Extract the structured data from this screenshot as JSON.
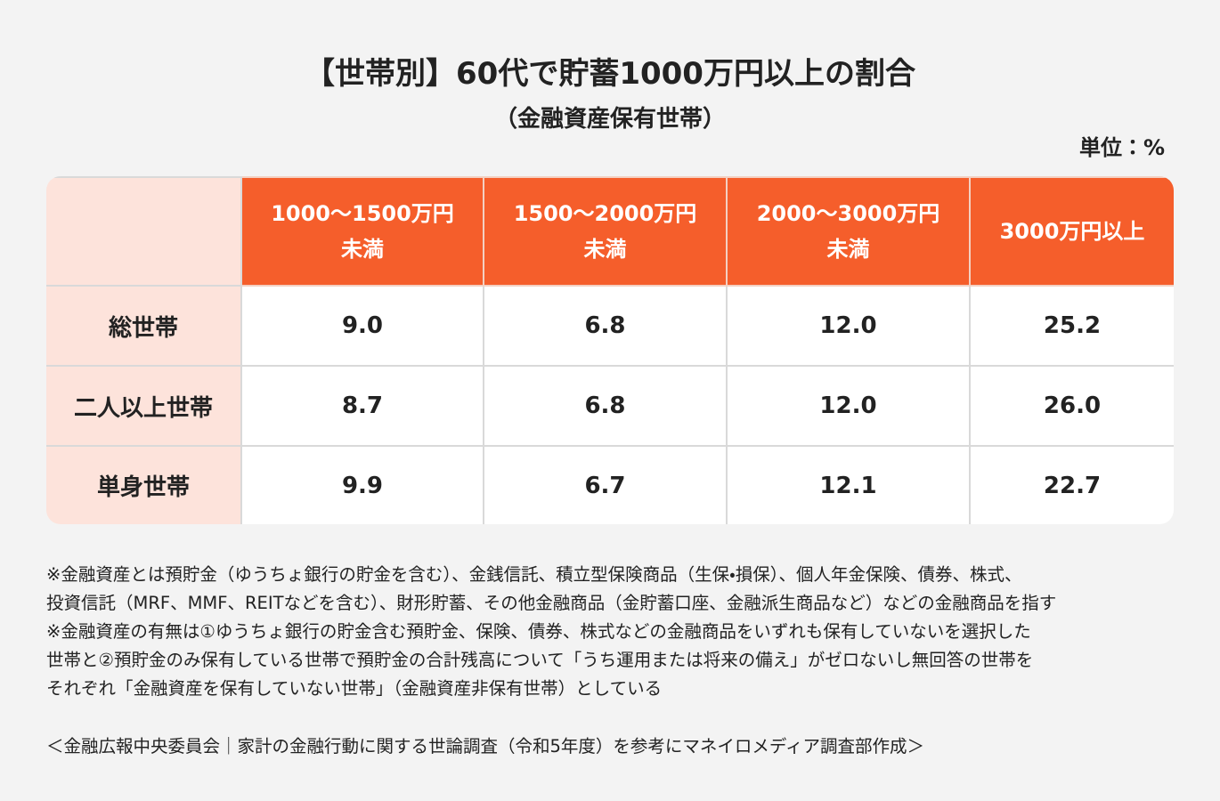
{
  "header": {
    "title": "【世帯別】60代で貯蓄1000万円以上の割合",
    "subtitle": "（金融資産保有世帯）",
    "unit": "単位：%"
  },
  "table": {
    "columns": [
      [
        "1000～1500万円",
        "未満"
      ],
      [
        "1500～2000万円",
        "未満"
      ],
      [
        "2000～3000万円",
        "未満"
      ],
      [
        "3000万円以上"
      ]
    ],
    "rows": [
      {
        "label": "総世帯",
        "cells": [
          "9.0",
          "6.8",
          "12.0",
          "25.2"
        ]
      },
      {
        "label": "二人以上世帯",
        "cells": [
          "8.7",
          "6.8",
          "12.0",
          "26.0"
        ]
      },
      {
        "label": "単身世帯",
        "cells": [
          "9.9",
          "6.7",
          "12.1",
          "22.7"
        ]
      }
    ]
  },
  "notes": [
    "※金融資産とは預貯金（ゆうちょ銀行の貯金を含む）、金銭信託、積立型保険商品（生保・損保）、個人年金保険、債券、株式、",
    "投資信託（MRF、MMF、REITなどを含む）、財形貯蓄、その他金融商品（金貯蓄口座、金融派生商品など）などの金融商品を指す",
    "※金融資産の有無は①ゆうちょ銀行の貯金含む預貯金、保険、債券、株式などの金融商品をいずれも保有していないを選択した",
    "世帯と②預貯金のみ保有している世帯で預貯金の合計残高について「うち運用または将来の備え」がゼロないし無回答の世帯を",
    "それぞれ「金融資産を保有していない世帯」（金融資産非保有世帯）としている"
  ],
  "source": "＜金融広報中央委員会｜家計の金融行動に関する世論調査（令和5年度）を参考にマネイロメディア調査部作成＞"
}
